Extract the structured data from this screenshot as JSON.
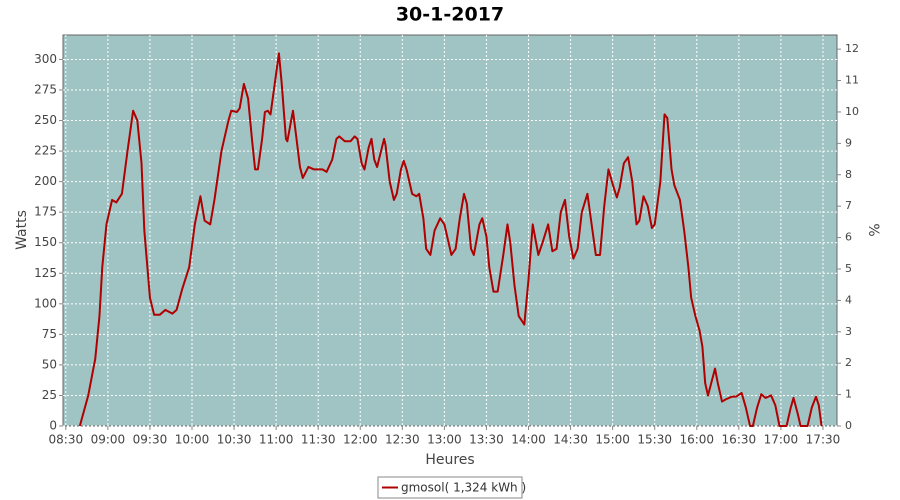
{
  "chart_data": {
    "type": "line",
    "title": "30-1-2017",
    "xlabel": "Heures",
    "ylabel": "Watts",
    "y2label": "%",
    "xlim": [
      "08:28",
      "17:40"
    ],
    "xticks": [
      "08:30",
      "09:00",
      "09:30",
      "10:00",
      "10:30",
      "11:00",
      "11:30",
      "12:00",
      "12:30",
      "13:00",
      "13:30",
      "14:00",
      "14:30",
      "15:00",
      "15:30",
      "16:00",
      "16:30",
      "17:00",
      "17:30"
    ],
    "ylim": [
      0,
      320
    ],
    "yticks": [
      0,
      25,
      50,
      75,
      100,
      125,
      150,
      175,
      200,
      225,
      250,
      275,
      300
    ],
    "y2lim": [
      0,
      12.45
    ],
    "y2ticks": [
      0,
      1,
      2,
      3,
      4,
      5,
      6,
      7,
      8,
      9,
      10,
      11,
      12
    ],
    "grid": true,
    "background": "#a0c4c4",
    "legend": "bottom",
    "x": [
      "08:40",
      "08:46",
      "08:51",
      "08:54",
      "08:56",
      "08:59",
      "09:03",
      "09:06",
      "09:10",
      "09:14",
      "09:18",
      "09:21",
      "09:24",
      "09:26",
      "09:30",
      "09:33",
      "09:37",
      "09:41",
      "09:46",
      "09:49",
      "09:53",
      "09:58",
      "10:02",
      "10:06",
      "10:09",
      "10:13",
      "10:16",
      "10:21",
      "10:26",
      "10:28",
      "10:32",
      "10:34",
      "10:37",
      "10:40",
      "10:43",
      "10:45",
      "10:47",
      "10:50",
      "10:52",
      "10:54",
      "10:56",
      "10:59",
      "11:02",
      "11:04",
      "11:07",
      "11:08",
      "11:12",
      "11:14",
      "11:17",
      "11:19",
      "11:23",
      "11:27",
      "11:33",
      "11:36",
      "11:40",
      "11:43",
      "11:45",
      "11:49",
      "11:53",
      "11:56",
      "11:58",
      "12:01",
      "12:03",
      "12:06",
      "12:08",
      "12:10",
      "12:12",
      "12:17",
      "12:18",
      "12:21",
      "12:24",
      "12:26",
      "12:29",
      "12:31",
      "12:33",
      "12:37",
      "12:40",
      "12:42",
      "12:45",
      "12:47",
      "12:50",
      "12:53",
      "12:57",
      "13:00",
      "13:03",
      "13:05",
      "13:08",
      "13:11",
      "13:14",
      "13:16",
      "13:19",
      "13:21",
      "13:25",
      "13:27",
      "13:30",
      "13:32",
      "13:35",
      "13:38",
      "13:42",
      "13:45",
      "13:47",
      "13:50",
      "13:53",
      "13:57",
      "14:00",
      "14:03",
      "14:07",
      "14:10",
      "14:14",
      "14:17",
      "14:20",
      "14:23",
      "14:26",
      "14:29",
      "14:32",
      "14:35",
      "14:38",
      "14:42",
      "14:45",
      "14:48",
      "14:51",
      "14:54",
      "14:57",
      "15:00",
      "15:03",
      "15:05",
      "15:08",
      "15:11",
      "15:14",
      "15:17",
      "15:19",
      "15:22",
      "15:25",
      "15:28",
      "15:30",
      "15:34",
      "15:37",
      "15:39",
      "15:42",
      "15:44",
      "15:48",
      "15:51",
      "15:54",
      "15:56",
      "15:59",
      "16:02",
      "16:04",
      "16:06",
      "16:08",
      "16:13",
      "16:15",
      "16:18",
      "16:21",
      "16:25",
      "16:28",
      "16:32",
      "16:35",
      "16:38",
      "16:40",
      "16:43",
      "16:46",
      "16:49",
      "16:53",
      "16:56",
      "16:59",
      "17:04",
      "17:07",
      "17:09",
      "17:12",
      "17:14",
      "17:19",
      "17:22",
      "17:25",
      "17:27",
      "17:29"
    ],
    "series": [
      {
        "name": "gmosol( 1,324 kWh )",
        "color": "#b00000",
        "values": [
          0,
          25,
          55,
          90,
          130,
          165,
          185,
          183,
          190,
          225,
          258,
          250,
          215,
          160,
          105,
          91,
          91,
          95,
          92,
          95,
          112,
          130,
          165,
          188,
          168,
          165,
          185,
          225,
          250,
          258,
          257,
          260,
          280,
          268,
          232,
          210,
          210,
          235,
          257,
          258,
          255,
          280,
          305,
          280,
          235,
          233,
          258,
          240,
          212,
          203,
          212,
          210,
          210,
          208,
          218,
          235,
          237,
          233,
          233,
          237,
          235,
          215,
          210,
          228,
          235,
          218,
          212,
          235,
          230,
          200,
          185,
          190,
          210,
          217,
          210,
          190,
          188,
          190,
          170,
          145,
          140,
          160,
          170,
          165,
          150,
          140,
          145,
          170,
          190,
          182,
          145,
          140,
          165,
          170,
          155,
          130,
          110,
          110,
          140,
          165,
          150,
          115,
          90,
          83,
          120,
          165,
          140,
          150,
          165,
          143,
          145,
          175,
          185,
          155,
          137,
          145,
          175,
          190,
          165,
          140,
          140,
          180,
          210,
          198,
          187,
          195,
          215,
          220,
          200,
          165,
          168,
          188,
          180,
          162,
          165,
          200,
          255,
          252,
          210,
          197,
          185,
          160,
          130,
          105,
          90,
          78,
          65,
          35,
          25,
          47,
          35,
          20,
          22,
          24,
          24,
          27,
          15,
          0,
          0,
          15,
          26,
          23,
          25,
          17,
          0,
          0,
          15,
          23,
          10,
          0,
          0,
          15,
          24,
          17,
          0
        ]
      }
    ]
  }
}
